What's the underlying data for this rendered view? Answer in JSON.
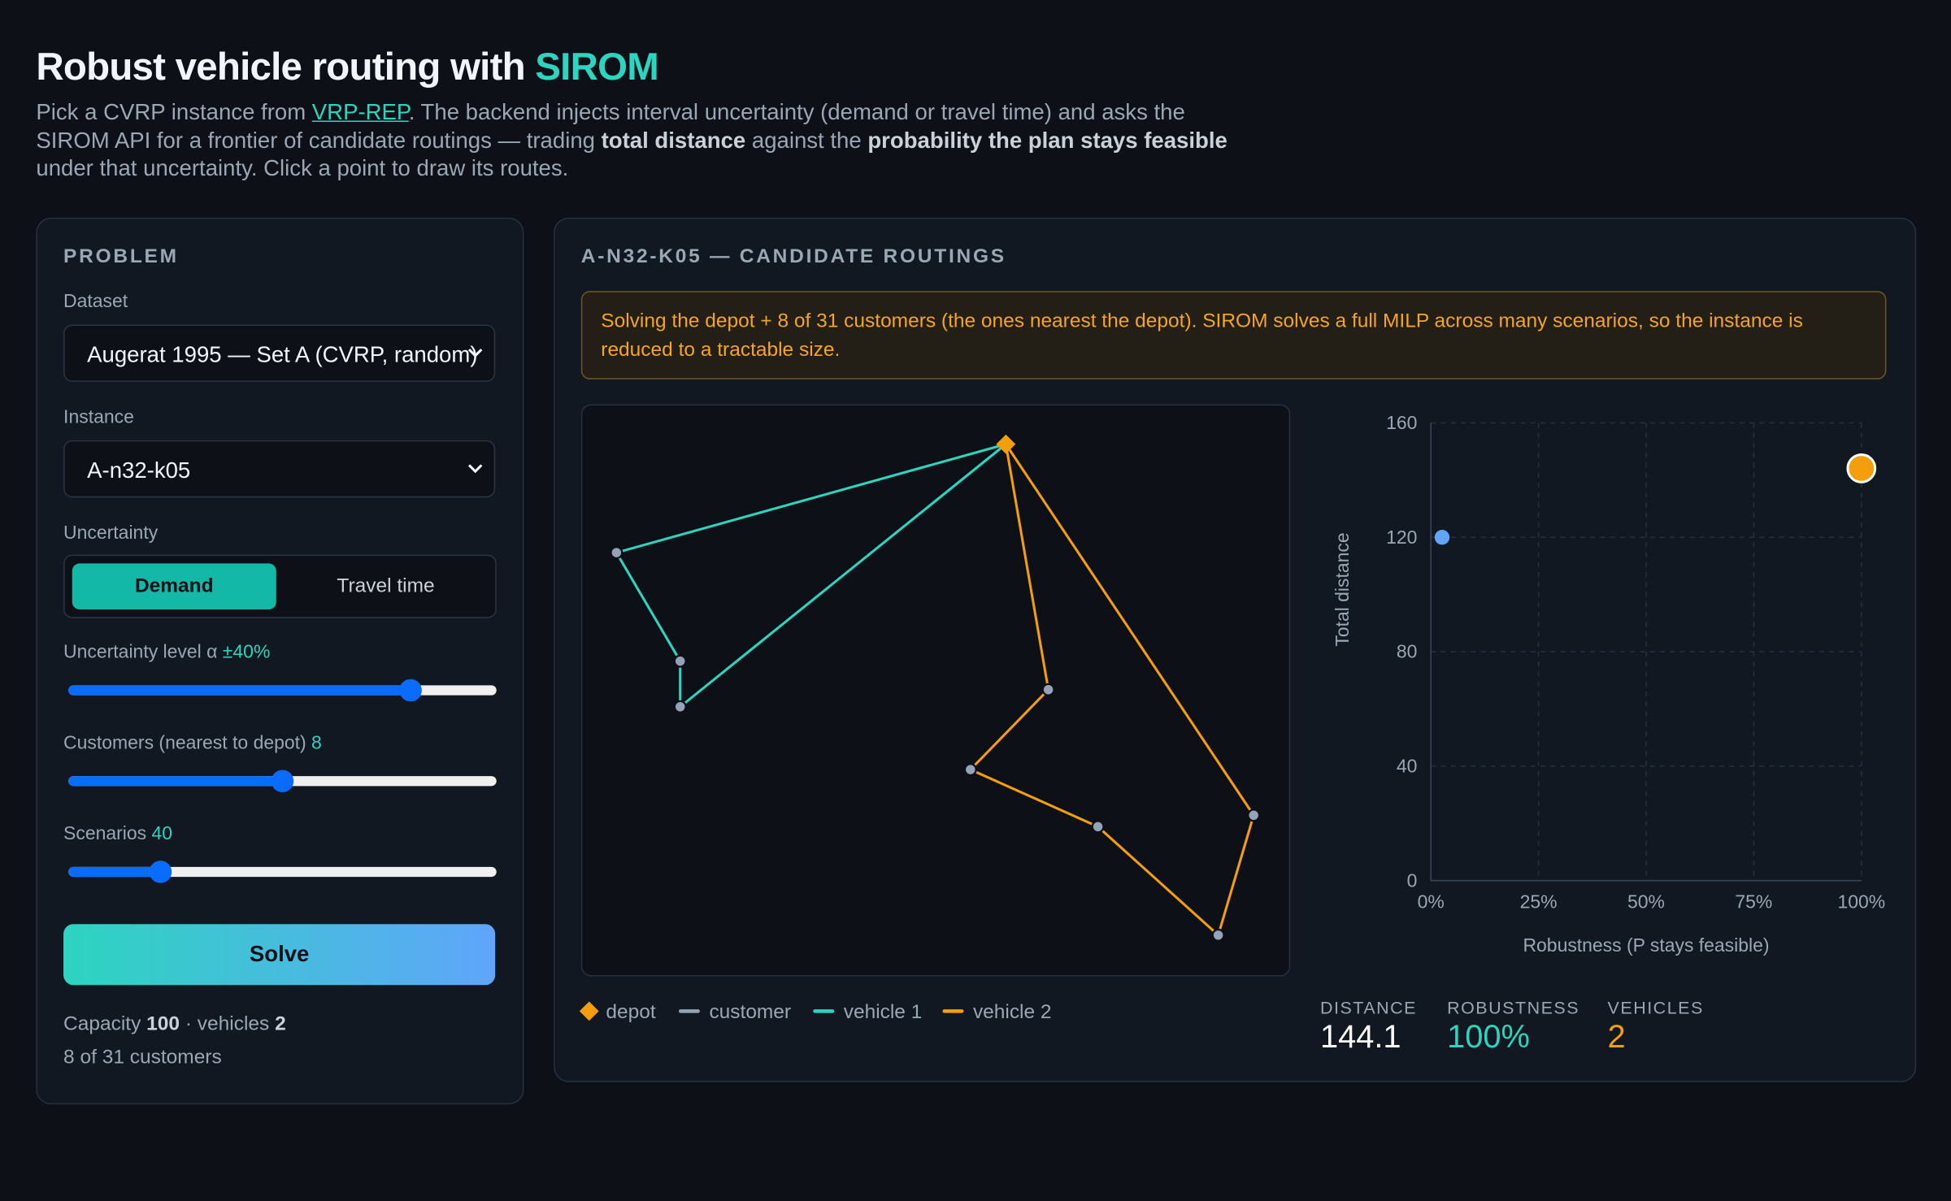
{
  "header": {
    "title": "Robust vehicle routing with ",
    "title_highlight": "SIROM",
    "intro": [
      "Pick a CVRP instance from ",
      "VRP-REP",
      ". The backend injects interval uncertainty (demand or travel time) and asks the SIROM API for a frontier of candidate routings — trading ",
      "total distance",
      " against the ",
      "probability the plan stays feasible",
      " under that uncertainty. Click a point to draw its routes."
    ]
  },
  "problem": {
    "heading": "PROBLEM",
    "dataset_label": "Dataset",
    "dataset": "Augerat 1995 — Set A (CVRP, random)",
    "instance_label": "Instance",
    "instance": "A-n32-k05",
    "uncertainty_label": "Uncertainty",
    "uncertainty_options": [
      "Demand",
      "Travel time"
    ],
    "uncertainty_selected": 0,
    "sliders": [
      {
        "label": "Uncertainty level α ",
        "value": 40,
        "value_label": "±40%",
        "min": 0,
        "max": 50
      },
      {
        "label": "Customers (nearest to depot) ",
        "value": 8,
        "min": 1,
        "max": 15
      },
      {
        "label": "Scenarios ",
        "value": 40,
        "min": 10,
        "max": 150
      }
    ],
    "solve": "Solve",
    "summary": [
      "Capacity ",
      100,
      " · vehicles ",
      2
    ],
    "customers_line": "8 of 31 customers"
  },
  "results": {
    "heading": "A-N32-K05 — CANDIDATE ROUTINGS",
    "notice": "Solving the depot + 8 of 31 customers (the ones nearest the depot). SIROM solves a full MILP across many scenarios, so the instance is reduced to a tractable size.",
    "map": {
      "xlim": [
        0,
        100
      ],
      "ylim": [
        0,
        100
      ],
      "depot": [
        60,
        93
      ],
      "depot_color": "#f59e0b",
      "customer_color": "#94a3b8",
      "routes": [
        {
          "name": "vehicle 1",
          "color": "#2dd4bf",
          "stops": [
            [
              5,
              74
            ],
            [
              14,
              55
            ],
            [
              14,
              47
            ]
          ]
        },
        {
          "name": "vehicle 2",
          "color": "#f59e0b",
          "stops": [
            [
              66,
              50
            ],
            [
              55,
              36
            ],
            [
              73,
              26
            ],
            [
              90,
              7
            ],
            [
              95,
              28
            ]
          ]
        }
      ],
      "legend": [
        "depot",
        "customer"
      ]
    },
    "stats": [
      {
        "label": "DISTANCE",
        "value": 144.1,
        "color": "#ffffff"
      },
      {
        "label": "ROBUSTNESS",
        "value": 100,
        "value_label": "100%",
        "color": "#2dd4bf"
      },
      {
        "label": "VEHICLES",
        "value": 2,
        "color": "#f59e0b"
      }
    ]
  },
  "chart_data": {
    "type": "scatter",
    "xlabel": "Robustness (P stays feasible)",
    "ylabel": "Total distance",
    "x": [
      2.6,
      100
    ],
    "values": [
      120,
      144.1
    ],
    "colors": [
      "#60a5fa",
      "#f59e0b"
    ],
    "selected": 1,
    "xlim": [
      0,
      100
    ],
    "xticks": [
      {
        "value": 0,
        "label": "0%"
      },
      {
        "value": 25,
        "label": "25%"
      },
      {
        "value": 50,
        "label": "50%"
      },
      {
        "value": 75,
        "label": "75%"
      },
      {
        "value": 100,
        "label": "100%"
      }
    ],
    "ylim": [
      0,
      160
    ],
    "yticks": [
      0,
      40,
      80,
      120,
      160
    ],
    "grid": true
  }
}
